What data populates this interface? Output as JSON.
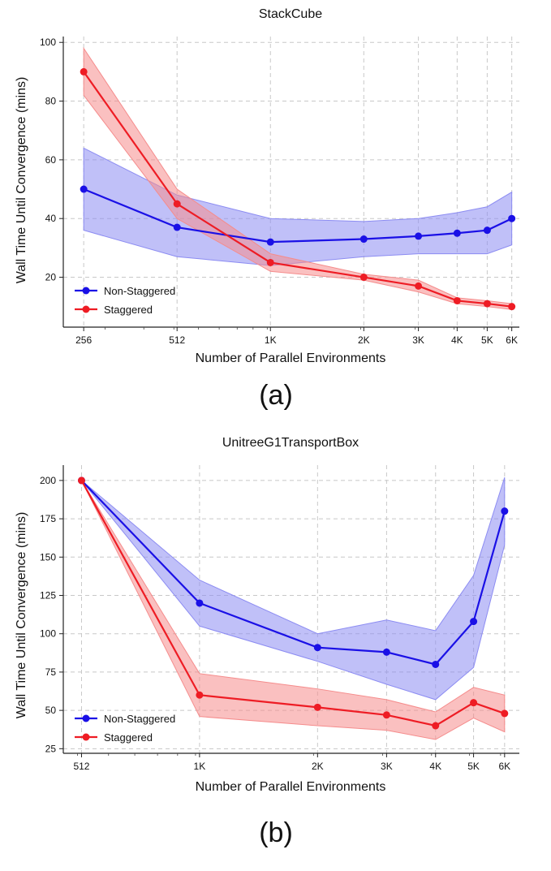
{
  "chart_data": [
    {
      "type": "line",
      "title": "StackCube",
      "xlabel": "Number of Parallel Environments",
      "ylabel": "Wall Time Until Convergence (mins)",
      "x_scale": "log",
      "x": [
        256,
        512,
        1024,
        2048,
        3072,
        4096,
        5120,
        6144
      ],
      "x_tick_labels": [
        "256",
        "512",
        "1K",
        "2K",
        "3K",
        "4K",
        "5K",
        "6K"
      ],
      "xlim": [
        220,
        6500
      ],
      "ylim": [
        3,
        102
      ],
      "y_ticks": [
        20,
        40,
        60,
        80,
        100
      ],
      "grid": true,
      "legend_position": "lower-left",
      "caption": "(a)",
      "series": [
        {
          "name": "Non-Staggered",
          "color": "#1a10e6",
          "band_color": "#8c8cf2",
          "values": [
            50,
            37,
            32,
            33,
            34,
            35,
            36,
            40
          ],
          "lower": [
            36,
            27,
            24,
            27,
            28,
            28,
            28,
            31
          ],
          "upper": [
            64,
            48,
            40,
            39,
            40,
            42,
            44,
            49
          ]
        },
        {
          "name": "Staggered",
          "color": "#ee1c24",
          "band_color": "#f58c8c",
          "values": [
            90,
            45,
            25,
            20,
            17,
            12,
            11,
            10
          ],
          "lower": [
            82,
            40,
            22,
            19,
            15,
            11,
            10,
            9
          ],
          "upper": [
            98,
            50,
            28,
            21,
            19,
            13,
            12,
            11
          ]
        }
      ]
    },
    {
      "type": "line",
      "title": "UnitreeG1TransportBox",
      "xlabel": "Number of Parallel Environments",
      "ylabel": "Wall Time Until Convergence (mins)",
      "x_scale": "log",
      "x": [
        512,
        1024,
        2048,
        3072,
        4096,
        5120,
        6144
      ],
      "x_tick_labels": [
        "512",
        "1K",
        "2K",
        "3K",
        "4K",
        "5K",
        "6K"
      ],
      "xlim": [
        460,
        6700
      ],
      "ylim": [
        22,
        210
      ],
      "y_ticks": [
        25,
        50,
        75,
        100,
        125,
        150,
        175,
        200
      ],
      "grid": true,
      "legend_position": "lower-left",
      "caption": "(b)",
      "series": [
        {
          "name": "Non-Staggered",
          "color": "#1a10e6",
          "band_color": "#8c8cf2",
          "values": [
            200,
            120,
            91,
            88,
            80,
            108,
            180
          ],
          "lower": [
            200,
            105,
            82,
            67,
            57,
            78,
            158
          ],
          "upper": [
            200,
            135,
            100,
            109,
            102,
            138,
            202
          ]
        },
        {
          "name": "Staggered",
          "color": "#ee1c24",
          "band_color": "#f58c8c",
          "values": [
            200,
            60,
            52,
            47,
            40,
            55,
            48
          ],
          "lower": [
            200,
            46,
            40,
            37,
            31,
            45,
            36
          ],
          "upper": [
            200,
            74,
            64,
            57,
            49,
            65,
            60
          ]
        }
      ]
    }
  ]
}
